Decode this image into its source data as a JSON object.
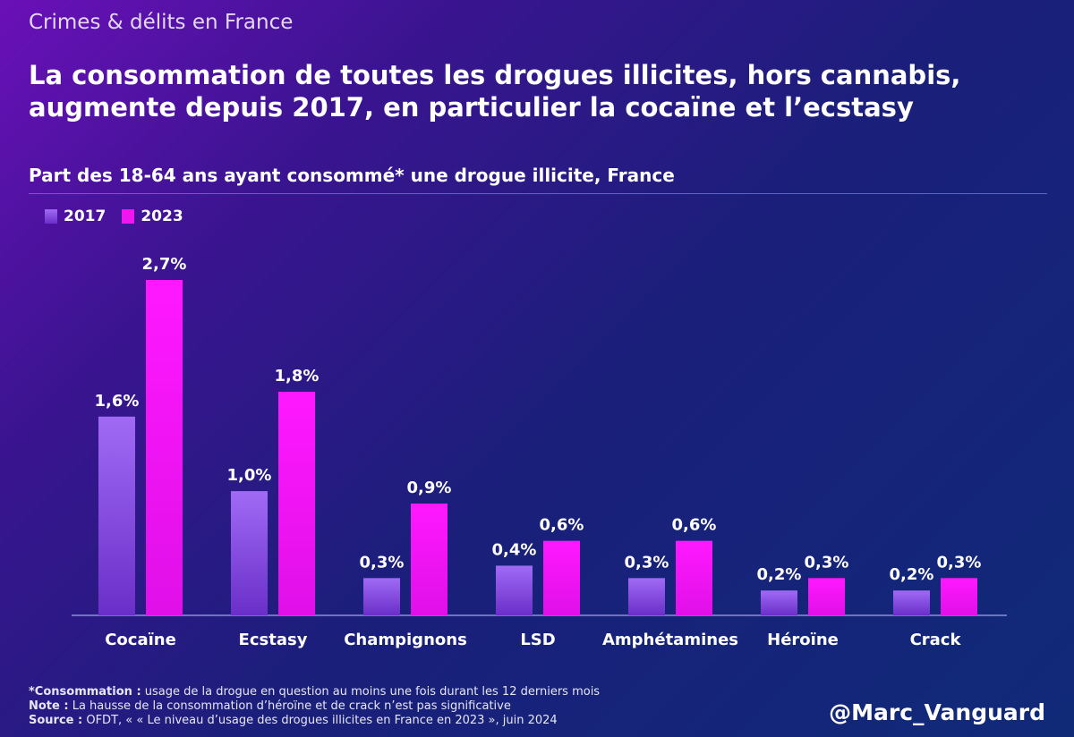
{
  "header": {
    "kicker": "Crimes & délits en France",
    "title": "La consommation de toutes les drogues illicites, hors cannabis, augmente depuis 2017, en particulier la cocaïne et l’ecstasy",
    "subtitle": "Part des 18-64 ans ayant consommé* une drogue illicite, France"
  },
  "colors": {
    "series_2017": "#8c52e8",
    "series_2023": "#ee17f0"
  },
  "chart_data": {
    "type": "bar",
    "categories": [
      "Cocaïne",
      "Ecstasy",
      "Champignons",
      "LSD",
      "Amphétamines",
      "Héroïne",
      "Crack"
    ],
    "series": [
      {
        "name": "2017",
        "values": [
          1.6,
          1.0,
          0.3,
          0.4,
          0.3,
          0.2,
          0.2
        ],
        "labels": [
          "1,6%",
          "1,0%",
          "0,3%",
          "0,4%",
          "0,3%",
          "0,2%",
          "0,2%"
        ]
      },
      {
        "name": "2023",
        "values": [
          2.7,
          1.8,
          0.9,
          0.6,
          0.6,
          0.3,
          0.3
        ],
        "labels": [
          "2,7%",
          "1,8%",
          "0,9%",
          "0,6%",
          "0,6%",
          "0,3%",
          "0,3%"
        ]
      }
    ],
    "ylim": [
      0,
      2.7
    ],
    "title": "Part des 18-64 ans ayant consommé* une drogue illicite, France",
    "legend": "top-left"
  },
  "footnotes": {
    "def_label": "*Consommation :",
    "def_text": " usage de la drogue en question au moins une fois durant les 12 derniers mois",
    "note_label": "Note :",
    "note_text": " La hausse de la consommation d’héroïne et de crack n’est pas significative",
    "source_label": "Source :",
    "source_text": " OFDT, « « Le niveau d’usage des drogues illicites en France en 2023 », juin 2024"
  },
  "handle": "@Marc_Vanguard"
}
